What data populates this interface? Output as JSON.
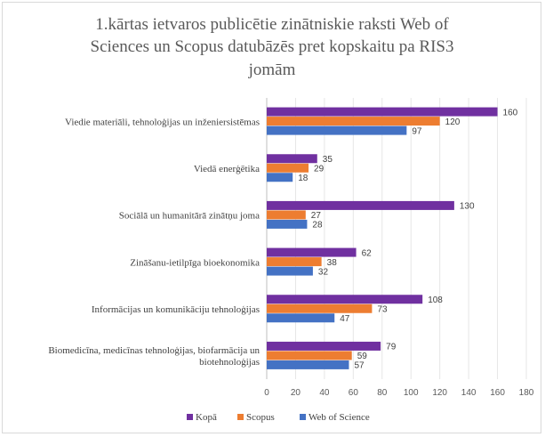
{
  "chart_data": {
    "type": "bar",
    "orientation": "horizontal",
    "title_lines": [
      "1.kārtas ietvaros publicētie zinātniskie raksti Web of",
      "Sciences un Scopus datubāzēs pret kopskaitu pa RIS3",
      "jomām"
    ],
    "categories": [
      "Viedie materiāli, tehnoloģijas un inženiersistēmas",
      "Viedā enerģētika",
      "Sociālā un humanitārā zinātņu joma",
      "Zināšanu-ietilpīga bioekonomika",
      "Informācijas un komunikāciju tehnoloģijas",
      "Biomedicīna, medicīnas tehnoloģijas, biofarmācija un biotehnoloģijas"
    ],
    "category_label_lines": [
      [
        "Viedie materiāli, tehnoloģijas un inženiersistēmas"
      ],
      [
        "Viedā enerģētika"
      ],
      [
        "Sociālā un humanitārā zinātņu joma"
      ],
      [
        "Zināšanu-ietilpīga bioekonomika"
      ],
      [
        "Informācijas un komunikāciju tehnoloģijas"
      ],
      [
        "Biomedicīna, medicīnas tehnoloģijas, biofarmācija un",
        "biotehnoloģijas"
      ]
    ],
    "series": [
      {
        "name": "Kopā",
        "color": "#7030a0",
        "values": [
          160,
          35,
          130,
          62,
          108,
          79
        ]
      },
      {
        "name": "Scopus",
        "color": "#ed7d31",
        "values": [
          120,
          29,
          27,
          38,
          73,
          59
        ]
      },
      {
        "name": "Web of Science",
        "color": "#4472c4",
        "values": [
          97,
          18,
          28,
          32,
          47,
          57
        ]
      }
    ],
    "xlim": [
      0,
      180
    ],
    "xticks": [
      0,
      20,
      40,
      60,
      80,
      100,
      120,
      140,
      160,
      180
    ],
    "grid": true,
    "legend_position": "bottom",
    "data_labels": true
  }
}
